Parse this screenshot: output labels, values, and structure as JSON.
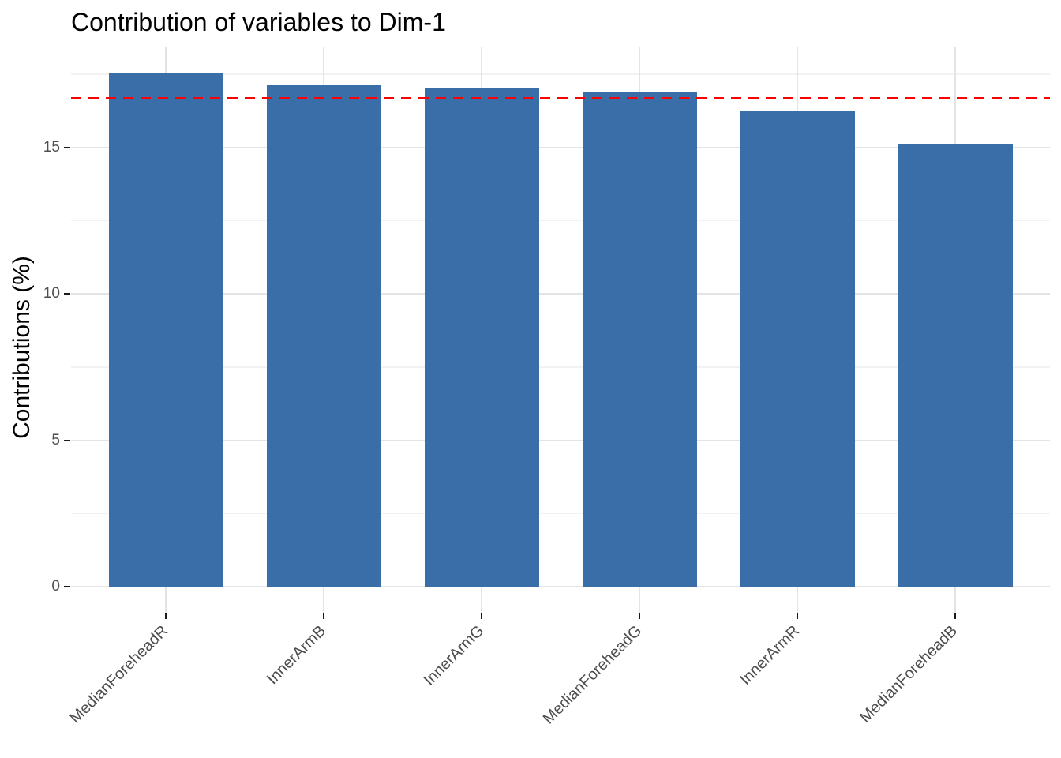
{
  "chart": {
    "title": "Contribution of variables to Dim-1",
    "ylabel": "Contributions (%)"
  },
  "chart_data": {
    "type": "bar",
    "title": "Contribution of variables to Dim-1",
    "xlabel": "",
    "ylabel": "Contributions (%)",
    "categories": [
      "MedianForeheadR",
      "InnerArmB",
      "InnerArmG",
      "MedianForeheadG",
      "InnerArmR",
      "MedianForeheadB"
    ],
    "values": [
      17.53,
      17.13,
      17.05,
      16.89,
      16.25,
      15.12
    ],
    "y_ticks": [
      0,
      5,
      10,
      15
    ],
    "y_minor_ticks": [
      2.5,
      7.5,
      12.5,
      17.5
    ],
    "ylim": [
      -0.88,
      18.42
    ],
    "x_label_angle": 45,
    "grid": true,
    "legend": "none",
    "reference_line": {
      "value": 16.67,
      "style": "dashed"
    }
  },
  "colors": {
    "bar": "#3A6EA8",
    "reference_line": "#FF0000",
    "grid_major": "#E4E4E4",
    "grid_minor": "#F2F2F2",
    "tick_mark": "#1A1A1A",
    "axis_text": "#4D4D4D",
    "title_text": "#000000",
    "background": "#FFFFFF"
  }
}
